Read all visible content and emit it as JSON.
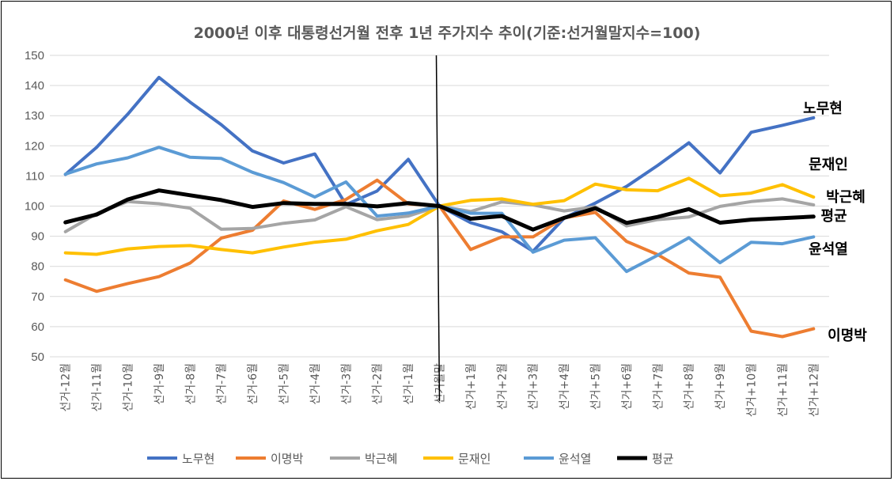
{
  "chart_data": {
    "type": "line",
    "title": "2000년 이후 대통령선거월 전후 1년 주가지수 추이(기준:선거월말지수=100)",
    "ylim": [
      50,
      150
    ],
    "yticks": [
      50,
      60,
      70,
      80,
      90,
      100,
      110,
      120,
      130,
      140,
      150
    ],
    "grid": true,
    "legend_position": "bottom",
    "categories": [
      "선거-12월",
      "선거-11월",
      "선거-10월",
      "선거-9월",
      "선거-8월",
      "선거-7월",
      "선거-6월",
      "선거-5월",
      "선거-4월",
      "선거-3월",
      "선거-2월",
      "선거-1월",
      "선거월말",
      "선거+1월",
      "선거+2월",
      "선거+3월",
      "선거+4월",
      "선거+5월",
      "선거+6월",
      "선거+7월",
      "선거+8월",
      "선거+9월",
      "선거+10월",
      "선거+11월",
      "선거+12월"
    ],
    "series": [
      {
        "name": "노무현",
        "color": "#4472C4",
        "width": 4,
        "values": [
          110.5,
          119.5,
          130.5,
          142.7,
          134.5,
          127,
          118.3,
          114.3,
          117.3,
          100.5,
          105,
          115.5,
          100,
          94.5,
          91.5,
          85,
          96,
          101,
          106.5,
          113.5,
          121,
          111,
          124.5,
          126.8,
          129.3
        ]
      },
      {
        "name": "이명박",
        "color": "#ED7D31",
        "width": 4,
        "values": [
          75.5,
          71.7,
          74.3,
          76.6,
          81.1,
          89.4,
          92.0,
          101.7,
          98.9,
          102.2,
          108.6,
          100.7,
          100,
          85.6,
          89.8,
          89.8,
          96.1,
          97.9,
          88.3,
          83.9,
          77.8,
          76.4,
          58.5,
          56.7,
          59.3
        ]
      },
      {
        "name": "박근혜",
        "color": "#A5A5A5",
        "width": 4,
        "values": [
          91.5,
          97.5,
          101.5,
          100.8,
          99.3,
          92.3,
          92.6,
          94.3,
          95.4,
          99.8,
          95.5,
          96.7,
          100,
          98.2,
          101.4,
          100.4,
          98.4,
          99.8,
          93.4,
          95.5,
          96.4,
          99.9,
          101.5,
          102.4,
          100.4
        ]
      },
      {
        "name": "문재인",
        "color": "#FFC000",
        "width": 4,
        "values": [
          84.5,
          84.0,
          85.8,
          86.6,
          86.9,
          85.6,
          84.5,
          86.4,
          88.0,
          89.0,
          91.8,
          93.9,
          100,
          101.9,
          102.4,
          100.6,
          101.8,
          107.3,
          105.4,
          105.1,
          109.2,
          103.4,
          104.3,
          107.1,
          103.0
        ]
      },
      {
        "name": "윤석열",
        "color": "#5B9BD5",
        "width": 4,
        "values": [
          110.6,
          114.0,
          116.0,
          119.5,
          116.2,
          115.8,
          111.2,
          107.8,
          103.0,
          108.0,
          96.7,
          97.7,
          100,
          97.6,
          97.6,
          84.7,
          88.7,
          89.5,
          78.3,
          83.7,
          89.5,
          81.2,
          88.0,
          87.5,
          89.8
        ]
      },
      {
        "name": "평균",
        "color": "#000000",
        "width": 5,
        "values": [
          94.6,
          97.2,
          102.2,
          105.2,
          103.6,
          102.0,
          99.7,
          101.0,
          100.7,
          100.7,
          99.9,
          101.0,
          100,
          95.8,
          96.7,
          92.2,
          96.1,
          99.3,
          94.4,
          96.4,
          99.0,
          94.5,
          95.5,
          96.0,
          96.5
        ]
      }
    ],
    "end_labels": [
      {
        "text": "노무현"
      },
      {
        "text": "문재인"
      },
      {
        "text": "박근혜"
      },
      {
        "text": "평균"
      },
      {
        "text": "윤석열"
      },
      {
        "text": "이명박"
      }
    ],
    "marker_category": "선거월말"
  }
}
